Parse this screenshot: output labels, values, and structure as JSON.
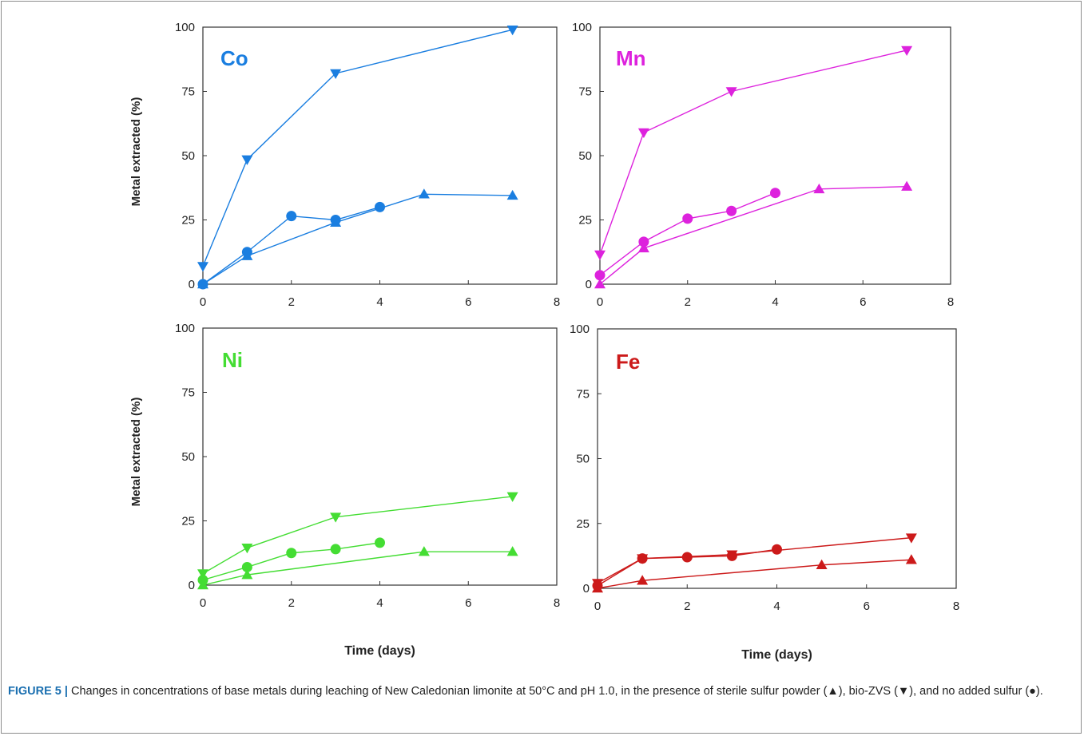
{
  "caption": {
    "label": "FIGURE 5 |",
    "text": "Changes in concentrations of base metals during leaching of New Caledonian limonite at 50°C and pH 1.0, in the presence of sterile sulfur powder (▲), bio-ZVS (▼), and no added sulfur (●)."
  },
  "chart_data": [
    {
      "type": "line",
      "title": "Co",
      "color": "#1a7ee0",
      "ylabel": "Metal extracted (%)",
      "xlabel": "",
      "xlim": [
        0,
        8
      ],
      "ylim": [
        0,
        100
      ],
      "xticks": [
        0,
        2,
        4,
        6,
        8
      ],
      "yticks": [
        0,
        25,
        50,
        75,
        100
      ],
      "grid": false,
      "series": [
        {
          "marker": "triangle-up",
          "x": [
            0,
            1,
            3,
            5,
            7
          ],
          "y": [
            0,
            11,
            24,
            35,
            34.5
          ]
        },
        {
          "marker": "triangle-down",
          "x": [
            0,
            1,
            3,
            7
          ],
          "y": [
            7,
            48.5,
            82,
            99
          ]
        },
        {
          "marker": "circle",
          "x": [
            0,
            1,
            2,
            3,
            4
          ],
          "y": [
            0,
            12.5,
            26.5,
            25,
            30
          ]
        }
      ]
    },
    {
      "type": "line",
      "title": "Mn",
      "color": "#dd22dd",
      "ylabel": "",
      "xlabel": "",
      "xlim": [
        0,
        8
      ],
      "ylim": [
        0,
        100
      ],
      "xticks": [
        0,
        2,
        4,
        6,
        8
      ],
      "yticks": [
        0,
        25,
        50,
        75,
        100
      ],
      "grid": false,
      "series": [
        {
          "marker": "triangle-up",
          "x": [
            0,
            1,
            5,
            7
          ],
          "y": [
            0,
            14,
            37,
            38
          ]
        },
        {
          "marker": "triangle-down",
          "x": [
            0,
            1,
            3,
            7
          ],
          "y": [
            11.5,
            59,
            75,
            91
          ]
        },
        {
          "marker": "circle",
          "x": [
            0,
            1,
            2,
            3,
            4
          ],
          "y": [
            3.5,
            16.5,
            25.5,
            28.5,
            35.5
          ]
        }
      ]
    },
    {
      "type": "line",
      "title": "Ni",
      "color": "#44dd33",
      "ylabel": "Metal extracted (%)",
      "xlabel": "Time (days)",
      "xlim": [
        0,
        8
      ],
      "ylim": [
        0,
        100
      ],
      "xticks": [
        0,
        2,
        4,
        6,
        8
      ],
      "yticks": [
        0,
        25,
        50,
        75,
        100
      ],
      "grid": false,
      "series": [
        {
          "marker": "triangle-up",
          "x": [
            0,
            1,
            5,
            7
          ],
          "y": [
            0,
            4,
            13,
            13
          ]
        },
        {
          "marker": "triangle-down",
          "x": [
            0,
            1,
            3,
            7
          ],
          "y": [
            4.5,
            14.5,
            26.5,
            34.5
          ]
        },
        {
          "marker": "circle",
          "x": [
            0,
            1,
            2,
            3,
            4
          ],
          "y": [
            2,
            7,
            12.5,
            14,
            16.5
          ]
        }
      ]
    },
    {
      "type": "line",
      "title": "Fe",
      "color": "#cc1a1a",
      "ylabel": "",
      "xlabel": "Time (days)",
      "xlim": [
        0,
        8
      ],
      "ylim": [
        0,
        100
      ],
      "xticks": [
        0,
        2,
        4,
        6,
        8
      ],
      "yticks": [
        0,
        25,
        50,
        75,
        100
      ],
      "grid": false,
      "series": [
        {
          "marker": "triangle-up",
          "x": [
            0,
            1,
            5,
            7
          ],
          "y": [
            0,
            3,
            9,
            11
          ]
        },
        {
          "marker": "triangle-down",
          "x": [
            0,
            1,
            3,
            7
          ],
          "y": [
            2,
            11.5,
            13,
            19.5
          ]
        },
        {
          "marker": "circle",
          "x": [
            0,
            1,
            2,
            3,
            4
          ],
          "y": [
            1,
            11.5,
            12,
            12.5,
            15
          ]
        }
      ]
    }
  ]
}
